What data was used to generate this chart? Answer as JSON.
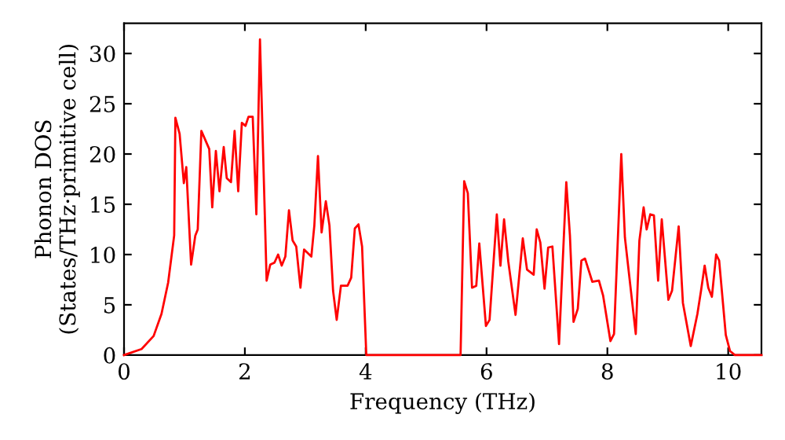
{
  "chart_data": {
    "type": "line",
    "xlabel": "Frequency (THz)",
    "ylabel": "Phonon DOS\n(States/THz·primitive cell)",
    "xlim": [
      0,
      10.55
    ],
    "ylim": [
      0,
      33
    ],
    "xticks": [
      0,
      2,
      4,
      6,
      8,
      10
    ],
    "yticks": [
      0,
      5,
      10,
      15,
      20,
      25,
      30
    ],
    "grid": false,
    "marker": "none",
    "line_style": "solid",
    "series": [
      {
        "color": "#ff0000",
        "x": [
          0,
          0.29,
          0.49,
          0.62,
          0.73,
          0.83,
          0.85,
          0.92,
          0.99,
          1.03,
          1.11,
          1.18,
          1.22,
          1.28,
          1.41,
          1.46,
          1.52,
          1.58,
          1.65,
          1.7,
          1.77,
          1.83,
          1.89,
          1.95,
          2.01,
          2.06,
          2.13,
          2.19,
          2.25,
          2.36,
          2.42,
          2.49,
          2.55,
          2.61,
          2.67,
          2.73,
          2.79,
          2.85,
          2.92,
          2.98,
          3.1,
          3.15,
          3.21,
          3.27,
          3.34,
          3.4,
          3.46,
          3.52,
          3.59,
          3.7,
          3.76,
          3.82,
          3.88,
          3.94,
          4.01,
          5.57,
          5.63,
          5.69,
          5.76,
          5.83,
          5.88,
          5.99,
          6.05,
          6.17,
          6.23,
          6.29,
          6.36,
          6.48,
          6.6,
          6.67,
          6.78,
          6.83,
          6.89,
          6.96,
          7.02,
          7.09,
          7.2,
          7.32,
          7.38,
          7.44,
          7.51,
          7.57,
          7.63,
          7.75,
          7.86,
          7.93,
          8.05,
          8.11,
          8.23,
          8.29,
          8.47,
          8.53,
          8.6,
          8.65,
          8.71,
          8.77,
          8.84,
          8.9,
          9.01,
          9.07,
          9.18,
          9.25,
          9.38,
          9.49,
          9.55,
          9.61,
          9.67,
          9.73,
          9.8,
          9.85,
          9.96,
          10.03,
          10.11,
          10.55
        ],
        "values": [
          0,
          0.6,
          1.9,
          4.1,
          7.2,
          11.9,
          23.6,
          22.0,
          17.1,
          18.7,
          9.0,
          11.9,
          12.5,
          22.3,
          20.5,
          14.7,
          20.3,
          16.3,
          20.7,
          17.6,
          17.2,
          22.3,
          16.3,
          23.1,
          22.8,
          23.7,
          23.7,
          14.0,
          31.4,
          7.4,
          9.0,
          9.2,
          10.0,
          8.9,
          9.8,
          14.4,
          11.4,
          10.8,
          6.7,
          10.5,
          9.8,
          12.9,
          19.8,
          12.2,
          15.3,
          12.9,
          6.4,
          3.5,
          6.9,
          6.9,
          7.7,
          12.6,
          13.0,
          10.8,
          0,
          0,
          17.3,
          16.1,
          6.7,
          6.9,
          11.1,
          2.9,
          3.5,
          14.0,
          8.9,
          13.5,
          9.3,
          4.0,
          11.6,
          8.5,
          8.0,
          12.5,
          11.2,
          6.6,
          10.7,
          10.8,
          1.1,
          17.2,
          11.9,
          3.3,
          4.6,
          9.4,
          9.6,
          7.3,
          7.4,
          5.9,
          1.4,
          2.1,
          20.0,
          11.7,
          2.1,
          11.4,
          14.7,
          12.5,
          14.0,
          13.9,
          7.4,
          13.5,
          5.5,
          6.4,
          12.8,
          5.2,
          0.9,
          4.1,
          6.4,
          8.9,
          6.7,
          5.8,
          10.0,
          9.4,
          2.0,
          0.4,
          0,
          0
        ]
      }
    ]
  }
}
